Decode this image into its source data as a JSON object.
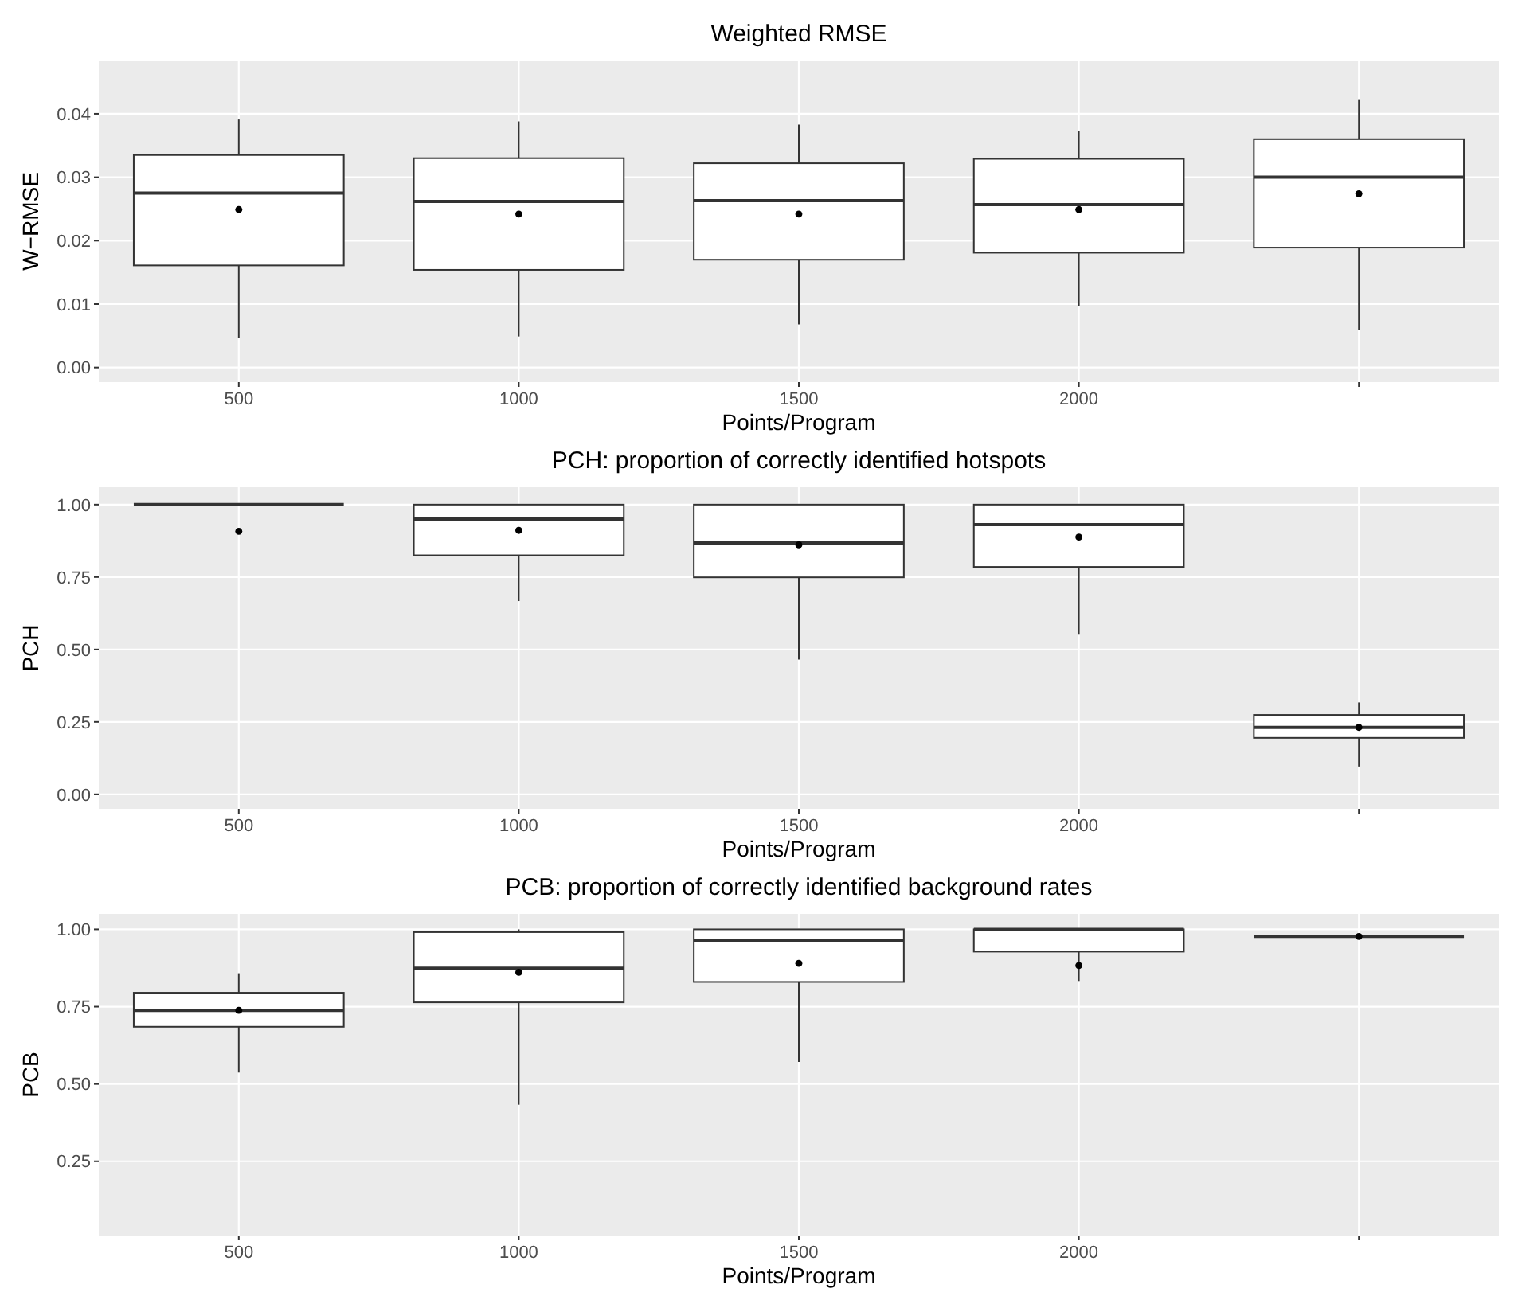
{
  "chart_data": [
    {
      "type": "box",
      "title": "Weighted RMSE",
      "xlabel": "Points/Program",
      "ylabel": "W−RMSE",
      "categories": [
        "500",
        "1000",
        "1500",
        "2000",
        null
      ],
      "ylim": [
        -0.0023,
        0.0484
      ],
      "yticks": [
        {
          "value": 0,
          "label": "0.00"
        },
        {
          "value": 0.01,
          "label": "0.01"
        },
        {
          "value": 0.02,
          "label": "0.02"
        },
        {
          "value": 0.03,
          "label": "0.03"
        },
        {
          "value": 0.04,
          "label": "0.04"
        }
      ],
      "grid": true,
      "boxes": [
        {
          "low": 0.0046,
          "q1": 0.0161,
          "median": 0.0275,
          "q3": 0.0335,
          "high": 0.0391,
          "mean": 0.0249
        },
        {
          "low": 0.0049,
          "q1": 0.0154,
          "median": 0.0262,
          "q3": 0.033,
          "high": 0.0388,
          "mean": 0.0242
        },
        {
          "low": 0.0068,
          "q1": 0.017,
          "median": 0.0263,
          "q3": 0.0322,
          "high": 0.0383,
          "mean": 0.0242
        },
        {
          "low": 0.0097,
          "q1": 0.0181,
          "median": 0.0257,
          "q3": 0.0329,
          "high": 0.0373,
          "mean": 0.0249
        },
        {
          "low": 0.0059,
          "q1": 0.0189,
          "median": 0.03,
          "q3": 0.036,
          "high": 0.0423,
          "mean": 0.0274
        }
      ]
    },
    {
      "type": "box",
      "title": "PCH: proportion of correctly identified hotspots",
      "xlabel": "Points/Program",
      "ylabel": "PCH",
      "categories": [
        "500",
        "1000",
        "1500",
        "2000",
        null
      ],
      "ylim": [
        -0.05,
        1.06
      ],
      "yticks": [
        {
          "value": 0,
          "label": "0.00"
        },
        {
          "value": 0.25,
          "label": "0.25"
        },
        {
          "value": 0.5,
          "label": "0.50"
        },
        {
          "value": 0.75,
          "label": "0.75"
        },
        {
          "value": 1,
          "label": "1.00"
        }
      ],
      "grid": true,
      "boxes": [
        {
          "low": 1,
          "q1": 1,
          "median": 1,
          "q3": 1,
          "high": 1,
          "mean": 0.908
        },
        {
          "low": 0.667,
          "q1": 0.825,
          "median": 0.95,
          "q3": 1,
          "high": 1,
          "mean": 0.911
        },
        {
          "low": 0.465,
          "q1": 0.749,
          "median": 0.868,
          "q3": 1,
          "high": 1,
          "mean": 0.861
        },
        {
          "low": 0.551,
          "q1": 0.785,
          "median": 0.931,
          "q3": 1,
          "high": 1,
          "mean": 0.888
        },
        {
          "low": 0.096,
          "q1": 0.195,
          "median": 0.231,
          "q3": 0.274,
          "high": 0.317,
          "mean": 0.231
        }
      ]
    },
    {
      "type": "box",
      "title": "PCB: proportion of correctly identified background rates",
      "xlabel": "Points/Program",
      "ylabel": "PCB",
      "categories": [
        "500",
        "1000",
        "1500",
        "2000",
        null
      ],
      "ylim": [
        0.01,
        1.05
      ],
      "yticks": [
        {
          "value": 0.25,
          "label": "0.25"
        },
        {
          "value": 0.5,
          "label": "0.50"
        },
        {
          "value": 0.75,
          "label": "0.75"
        },
        {
          "value": 1,
          "label": "1.00"
        }
      ],
      "grid": true,
      "boxes": [
        {
          "low": 0.537,
          "q1": 0.685,
          "median": 0.738,
          "q3": 0.795,
          "high": 0.858,
          "mean": 0.738
        },
        {
          "low": 0.433,
          "q1": 0.764,
          "median": 0.874,
          "q3": 0.991,
          "high": 1,
          "mean": 0.861
        },
        {
          "low": 0.571,
          "q1": 0.83,
          "median": 0.965,
          "q3": 1,
          "high": 1,
          "mean": 0.89
        },
        {
          "low": 0.833,
          "q1": 0.928,
          "median": 1,
          "q3": 1,
          "high": 1,
          "mean": 0.883
        },
        {
          "low": 0.977,
          "q1": 0.977,
          "median": 0.977,
          "q3": 0.977,
          "high": 0.977,
          "mean": 0.977
        }
      ]
    }
  ]
}
